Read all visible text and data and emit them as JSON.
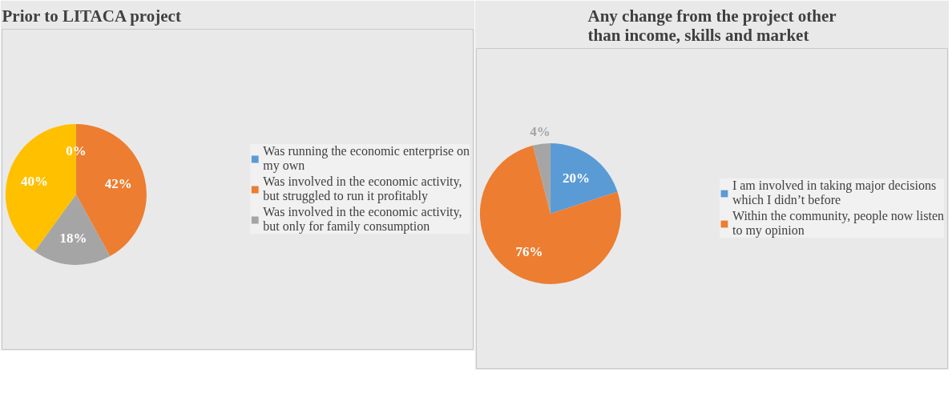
{
  "chart_data": [
    {
      "type": "pie",
      "title": "Prior to LITACA project",
      "categories": [
        "Was running the economic enterprise on my own",
        "Was involved in the economic activity, but struggled to run it profitably",
        "Was involved in the economic activity, but only for family consumption",
        null
      ],
      "values": [
        0,
        42,
        18,
        40
      ],
      "colors": [
        "#5b9bd5",
        "#ed7d31",
        "#a5a5a5",
        "#ffc000"
      ],
      "value_labels": [
        "0%",
        "42%",
        "18%",
        "40%"
      ],
      "legend": "right"
    },
    {
      "type": "pie",
      "title": "Any change from the project other than income, skills  and market",
      "categories": [
        "I am involved in taking major decisions which I didn’t before",
        "Within the community, people now listen to my opinion",
        null
      ],
      "values": [
        20,
        76,
        4
      ],
      "colors": [
        "#5b9bd5",
        "#ed7d31",
        "#a5a5a5"
      ],
      "value_labels": [
        "20%",
        "76%",
        "4%"
      ],
      "legend": "right"
    }
  ]
}
